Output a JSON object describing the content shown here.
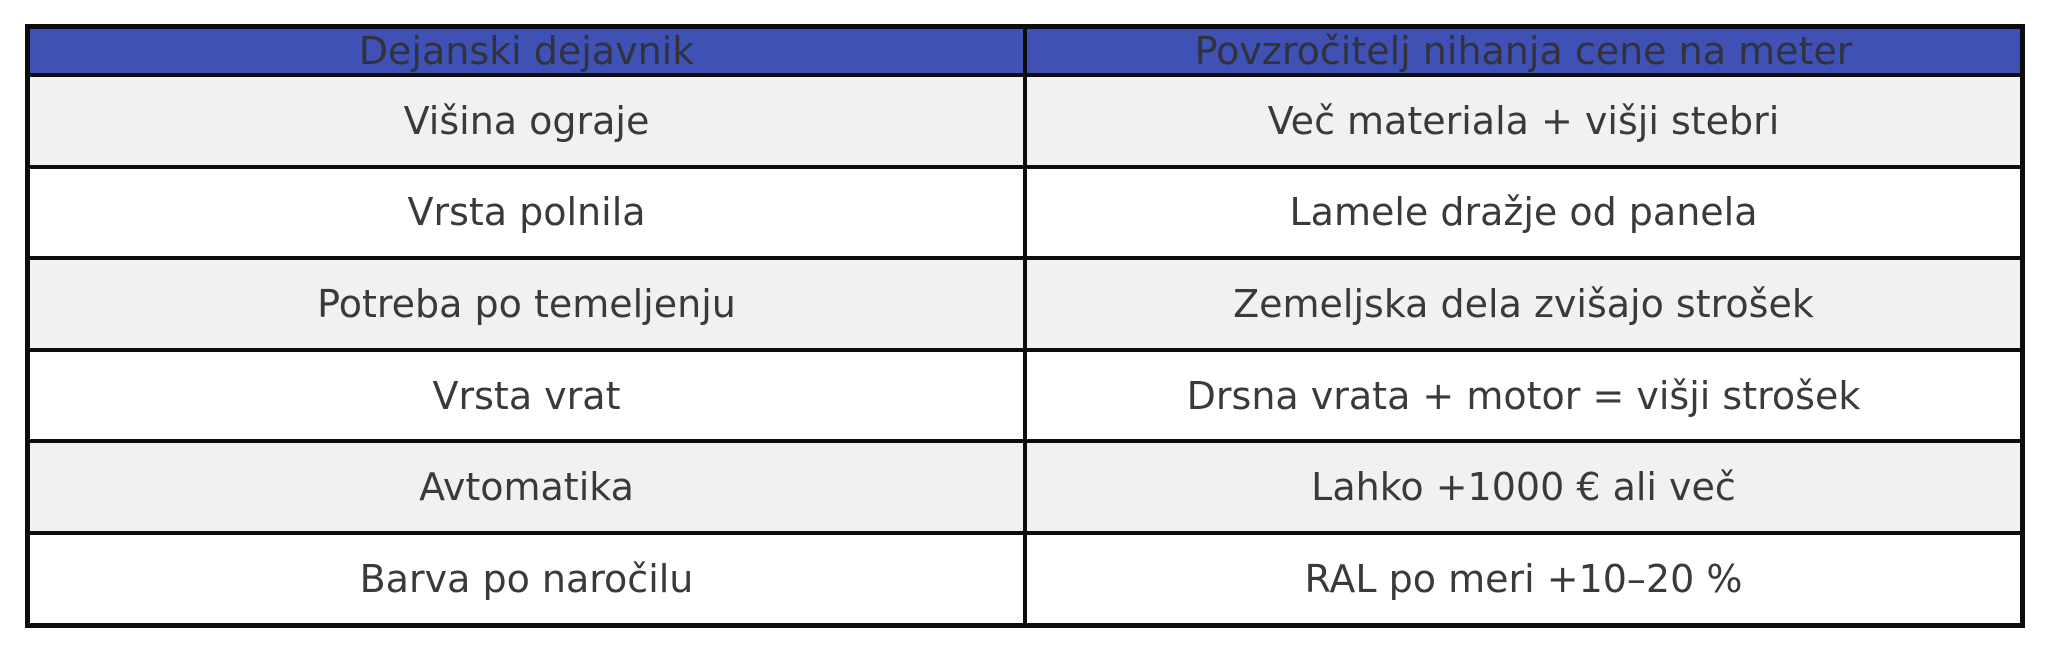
{
  "colors": {
    "header_background": "#3f51b5",
    "header_text": "#32323c",
    "body_text": "#3a3a3a",
    "row_shaded_background": "#f1f1f1",
    "row_plain_background": "#ffffff",
    "border": "#0d0d0d",
    "page_background": "#ffffff"
  },
  "table": {
    "header": [
      "Dejanski dejavnik",
      "Povzročitelj nihanja cene na meter"
    ],
    "rows": [
      [
        "Višina ograje",
        "Več materiala + višji stebri"
      ],
      [
        "Vrsta polnila",
        "Lamele dražje od panela"
      ],
      [
        "Potreba po temeljenju",
        "Zemeljska dela zvišajo strošek"
      ],
      [
        "Vrsta vrat",
        "Drsna vrata + motor = višji strošek"
      ],
      [
        "Avtomatika",
        "Lahko +1000 € ali več"
      ],
      [
        "Barva po naročilu",
        "RAL po meri +10–20 %"
      ]
    ]
  },
  "chart_data": {
    "type": "table",
    "title": "",
    "columns": [
      "Dejanski dejavnik",
      "Povzročitelj nihanja cene na meter"
    ],
    "rows": [
      [
        "Višina ograje",
        "Več materiala + višji stebri"
      ],
      [
        "Vrsta polnila",
        "Lamele dražje od panela"
      ],
      [
        "Potreba po temeljenju",
        "Zemeljska dela zvišajo strošek"
      ],
      [
        "Vrsta vrat",
        "Drsna vrata + motor = višji strošek"
      ],
      [
        "Avtomatika",
        "Lahko +1000 € ali več"
      ],
      [
        "Barva po naročilu",
        "RAL po meri +10–20 %"
      ]
    ],
    "layout_hints": {
      "header_fill": "#3f51b5",
      "alternating_row_fill": [
        "#f1f1f1",
        "#ffffff"
      ],
      "grid": "heavy-black-borders",
      "text_align": "center"
    }
  }
}
